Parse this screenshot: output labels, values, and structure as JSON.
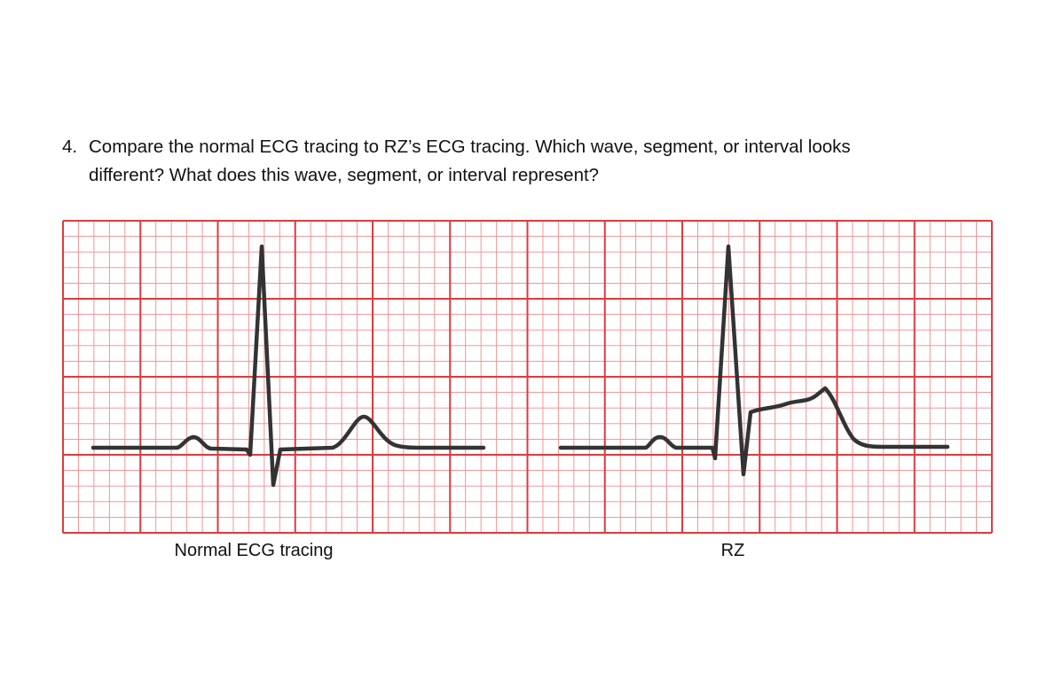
{
  "question": {
    "number": "4.",
    "lines": [
      "Compare the normal ECG tracing to RZ’s ECG tracing. Which wave, segment, or interval looks",
      "different? What does this wave, segment, or interval represent?"
    ]
  },
  "figure": {
    "labels": [
      "Normal ECG tracing",
      "RZ"
    ]
  }
}
